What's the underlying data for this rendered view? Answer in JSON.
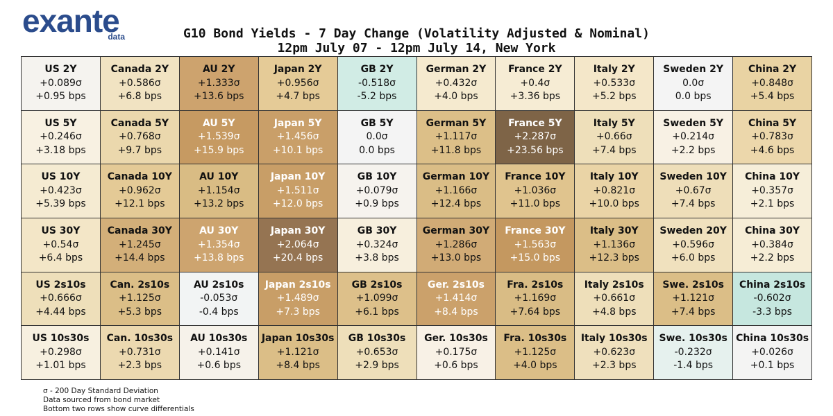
{
  "logo": {
    "main": "exante",
    "sub": "data"
  },
  "title_line1": "G10 Bond Yields - 7 Day Change (Volatility Adjusted & Nominal)",
  "title_line2": "12pm July 07 - 12pm July 14, New York",
  "footnotes": [
    "σ - 200 Day Standard Deviation",
    "Data sourced from bond market",
    "Bottom two rows show curve differentials"
  ],
  "chart_data": {
    "type": "table",
    "title": "G10 Bond Yields - 7 Day Change (Volatility Adjusted & Nominal)",
    "subtitle": "12pm July 07 - 12pm July 14, New York",
    "cells": [
      [
        {
          "name": "US 2Y",
          "sigma": "+0.089σ",
          "bps": "+0.95 bps",
          "color": "#f5f3ef"
        },
        {
          "name": "Canada 2Y",
          "sigma": "+0.586σ",
          "bps": "+6.8 bps",
          "color": "#f1e3c2"
        },
        {
          "name": "AU 2Y",
          "sigma": "+1.333σ",
          "bps": "+13.6 bps",
          "color": "#cda36e"
        },
        {
          "name": "Japan 2Y",
          "sigma": "+0.956σ",
          "bps": "+4.7 bps",
          "color": "#e5cb97"
        },
        {
          "name": "GB 2Y",
          "sigma": "-0.518σ",
          "bps": "-5.2 bps",
          "color": "#d1ece5"
        },
        {
          "name": "German 2Y",
          "sigma": "+0.432σ",
          "bps": "+4.0 bps",
          "color": "#f5eacf"
        },
        {
          "name": "France 2Y",
          "sigma": "+0.4σ",
          "bps": "+3.36 bps",
          "color": "#f6ecd4"
        },
        {
          "name": "Italy 2Y",
          "sigma": "+0.533σ",
          "bps": "+5.2 bps",
          "color": "#f4e7c9"
        },
        {
          "name": "Sweden 2Y",
          "sigma": "0.0σ",
          "bps": "0.0 bps",
          "color": "#f4f4f4"
        },
        {
          "name": "China 2Y",
          "sigma": "+0.848σ",
          "bps": "+5.4 bps",
          "color": "#e9d3a3"
        }
      ],
      [
        {
          "name": "US 5Y",
          "sigma": "+0.246σ",
          "bps": "+3.18 bps",
          "color": "#f8f1e2"
        },
        {
          "name": "Canada 5Y",
          "sigma": "+0.768σ",
          "bps": "+9.7 bps",
          "color": "#ebd8ad"
        },
        {
          "name": "AU 5Y",
          "sigma": "+1.539σ",
          "bps": "+15.9 bps",
          "color": "#c69a62",
          "light": true
        },
        {
          "name": "Japan 5Y",
          "sigma": "+1.456σ",
          "bps": "+10.1 bps",
          "color": "#c99f69",
          "light": true
        },
        {
          "name": "GB 5Y",
          "sigma": "0.0σ",
          "bps": "0.0 bps",
          "color": "#f4f4f4"
        },
        {
          "name": "German 5Y",
          "sigma": "+1.117σ",
          "bps": "+11.8 bps",
          "color": "#dcbf88"
        },
        {
          "name": "France 5Y",
          "sigma": "+2.287σ",
          "bps": "+23.56 bps",
          "color": "#7e6447",
          "light": true
        },
        {
          "name": "Italy 5Y",
          "sigma": "+0.66σ",
          "bps": "+7.4 bps",
          "color": "#eedfba"
        },
        {
          "name": "Sweden 5Y",
          "sigma": "+0.214σ",
          "bps": "+2.2 bps",
          "color": "#f8f1e4"
        },
        {
          "name": "China 5Y",
          "sigma": "+0.783σ",
          "bps": "+4.6 bps",
          "color": "#ecd7ab"
        }
      ],
      [
        {
          "name": "US 10Y",
          "sigma": "+0.423σ",
          "bps": "+5.39 bps",
          "color": "#f5ebd2"
        },
        {
          "name": "Canada 10Y",
          "sigma": "+0.962σ",
          "bps": "+12.1 bps",
          "color": "#e4ca96"
        },
        {
          "name": "AU 10Y",
          "sigma": "+1.154σ",
          "bps": "+13.2 bps",
          "color": "#d9bc84"
        },
        {
          "name": "Japan 10Y",
          "sigma": "+1.511σ",
          "bps": "+12.0 bps",
          "color": "#c89e67",
          "light": true
        },
        {
          "name": "GB 10Y",
          "sigma": "+0.079σ",
          "bps": "+0.9 bps",
          "color": "#f6f3ee"
        },
        {
          "name": "German 10Y",
          "sigma": "+1.166σ",
          "bps": "+12.4 bps",
          "color": "#dabd86"
        },
        {
          "name": "France 10Y",
          "sigma": "+1.036σ",
          "bps": "+11.0 bps",
          "color": "#e0c48e"
        },
        {
          "name": "Italy 10Y",
          "sigma": "+0.821σ",
          "bps": "+10.0 bps",
          "color": "#ead4a6"
        },
        {
          "name": "Sweden 10Y",
          "sigma": "+0.67σ",
          "bps": "+7.4 bps",
          "color": "#eedeb9"
        },
        {
          "name": "China 10Y",
          "sigma": "+0.357σ",
          "bps": "+2.1 bps",
          "color": "#f6eed9"
        }
      ],
      [
        {
          "name": "US 30Y",
          "sigma": "+0.54σ",
          "bps": "+6.4 bps",
          "color": "#f3e6c7"
        },
        {
          "name": "Canada 30Y",
          "sigma": "+1.245σ",
          "bps": "+14.4 bps",
          "color": "#d3af79"
        },
        {
          "name": "AU 30Y",
          "sigma": "+1.354σ",
          "bps": "+13.8 bps",
          "color": "#cda46f",
          "light": true
        },
        {
          "name": "Japan 30Y",
          "sigma": "+2.064σ",
          "bps": "+20.4 bps",
          "color": "#957452",
          "light": true
        },
        {
          "name": "GB 30Y",
          "sigma": "+0.324σ",
          "bps": "+3.8 bps",
          "color": "#f7efdd"
        },
        {
          "name": "German 30Y",
          "sigma": "+1.286σ",
          "bps": "+13.0 bps",
          "color": "#d1ab76"
        },
        {
          "name": "France 30Y",
          "sigma": "+1.563σ",
          "bps": "+15.0 bps",
          "color": "#c49860",
          "light": true
        },
        {
          "name": "Italy 30Y",
          "sigma": "+1.136σ",
          "bps": "+12.3 bps",
          "color": "#dbbe87"
        },
        {
          "name": "Sweden 20Y",
          "sigma": "+0.596σ",
          "bps": "+6.0 bps",
          "color": "#f0e1be"
        },
        {
          "name": "China 30Y",
          "sigma": "+0.384σ",
          "bps": "+2.2 bps",
          "color": "#f6edd6"
        }
      ],
      [
        {
          "name": "US 2s10s",
          "sigma": "+0.666σ",
          "bps": "+4.44 bps",
          "color": "#eedfba"
        },
        {
          "name": "Can. 2s10s",
          "sigma": "+1.125σ",
          "bps": "+5.3 bps",
          "color": "#dbbe87"
        },
        {
          "name": "AU 2s10s",
          "sigma": "-0.053σ",
          "bps": "-0.4 bps",
          "color": "#f2f4f4"
        },
        {
          "name": "Japan 2s10s",
          "sigma": "+1.489σ",
          "bps": "+7.3 bps",
          "color": "#c89e67",
          "light": true
        },
        {
          "name": "GB 2s10s",
          "sigma": "+1.099σ",
          "bps": "+6.1 bps",
          "color": "#ddc08a"
        },
        {
          "name": "Ger. 2s10s",
          "sigma": "+1.414σ",
          "bps": "+8.4 bps",
          "color": "#cba16b",
          "light": true
        },
        {
          "name": "Fra. 2s10s",
          "sigma": "+1.169σ",
          "bps": "+7.64 bps",
          "color": "#d9bc85"
        },
        {
          "name": "Italy 2s10s",
          "sigma": "+0.661σ",
          "bps": "+4.8 bps",
          "color": "#eedfba"
        },
        {
          "name": "Swe. 2s10s",
          "sigma": "+1.121σ",
          "bps": "+7.4 bps",
          "color": "#dbbe87"
        },
        {
          "name": "China 2s10s",
          "sigma": "-0.602σ",
          "bps": "-3.3 bps",
          "color": "#c6e7df"
        }
      ],
      [
        {
          "name": "US 10s30s",
          "sigma": "+0.298σ",
          "bps": "+1.01 bps",
          "color": "#f7f0e0"
        },
        {
          "name": "Can. 10s30s",
          "sigma": "+0.731σ",
          "bps": "+2.3 bps",
          "color": "#ecd9b0"
        },
        {
          "name": "AU 10s30s",
          "sigma": "+0.141σ",
          "bps": "+0.6 bps",
          "color": "#f6f2ea"
        },
        {
          "name": "Japan 10s30s",
          "sigma": "+1.121σ",
          "bps": "+8.4 bps",
          "color": "#dbbe87"
        },
        {
          "name": "GB 10s30s",
          "sigma": "+0.653σ",
          "bps": "+2.9 bps",
          "color": "#eedfba"
        },
        {
          "name": "Ger. 10s30s",
          "sigma": "+0.175σ",
          "bps": "+0.6 bps",
          "color": "#f8f1e6"
        },
        {
          "name": "Fra. 10s30s",
          "sigma": "+1.125σ",
          "bps": "+4.0 bps",
          "color": "#dbbe87"
        },
        {
          "name": "Italy 10s30s",
          "sigma": "+0.623σ",
          "bps": "+2.3 bps",
          "color": "#efe0bd"
        },
        {
          "name": "Swe. 10s30s",
          "sigma": "-0.232σ",
          "bps": "-1.4 bps",
          "color": "#e6f1ee"
        },
        {
          "name": "China 10s30s",
          "sigma": "+0.026σ",
          "bps": "+0.1 bps",
          "color": "#f4f4f3"
        }
      ]
    ]
  }
}
